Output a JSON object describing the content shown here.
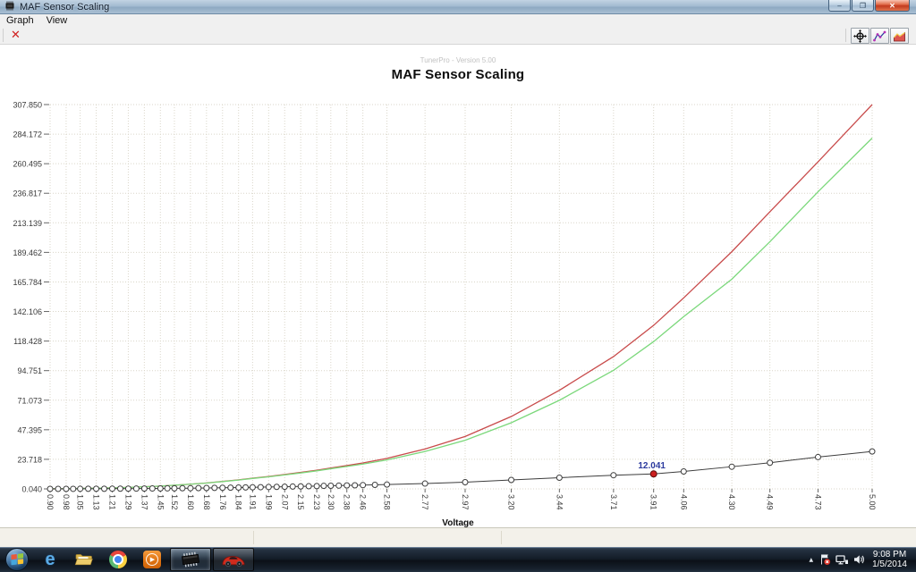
{
  "window": {
    "title": "MAF Sensor Scaling",
    "minimize_glyph": "–",
    "restore_glyph": "❐",
    "close_glyph": "✕"
  },
  "menu": {
    "items": [
      "Graph",
      "View"
    ]
  },
  "toolbar": {
    "delete_glyph": "✕"
  },
  "chart": {
    "subtitle": "TunerPro - Version 5.00",
    "title": "MAF Sensor Scaling",
    "xlabel": "Voltage"
  },
  "chart_data": {
    "type": "line",
    "title": "MAF Sensor Scaling",
    "xlabel": "Voltage",
    "grid": true,
    "grid_color": "#dad6c9",
    "legend": "none",
    "xlim": [
      0.9,
      5.0
    ],
    "ylim": [
      0.04,
      307.85
    ],
    "x": [
      0.9,
      0.98,
      1.05,
      1.13,
      1.21,
      1.29,
      1.37,
      1.45,
      1.52,
      1.6,
      1.68,
      1.76,
      1.84,
      1.91,
      1.99,
      2.07,
      2.15,
      2.23,
      2.3,
      2.38,
      2.46,
      2.58,
      2.77,
      2.97,
      3.2,
      3.44,
      3.71,
      3.91,
      4.06,
      4.3,
      4.49,
      4.73,
      5.0
    ],
    "x_labels": [
      "0.90",
      "0.98",
      "1.05",
      "1.13",
      "1.21",
      "1.29",
      "1.37",
      "1.45",
      "1.52",
      "1.60",
      "1.68",
      "1.76",
      "1.84",
      "1.91",
      "1.99",
      "2.07",
      "2.15",
      "2.23",
      "2.30",
      "2.38",
      "2.46",
      "2.58",
      "2.77",
      "2.97",
      "3.20",
      "3.44",
      "3.71",
      "3.91",
      "4.06",
      "4.30",
      "4.49",
      "4.73",
      "5.00"
    ],
    "y_ticks": [
      "0.040",
      "23.718",
      "47.395",
      "71.073",
      "94.751",
      "118.428",
      "142.106",
      "165.784",
      "189.462",
      "213.139",
      "236.817",
      "260.495",
      "284.172",
      "307.850"
    ],
    "dense_until": 21,
    "series": [
      {
        "name": "scaling-curve-red",
        "color": "#c84b4b",
        "markers": false,
        "values": [
          0.1,
          0.2,
          0.35,
          0.55,
          0.8,
          1.2,
          1.7,
          2.3,
          3.0,
          3.8,
          4.8,
          6.0,
          7.3,
          8.6,
          10.0,
          11.6,
          13.3,
          15.0,
          16.8,
          18.7,
          20.8,
          24.5,
          32.0,
          42.0,
          58.0,
          79.0,
          106.0,
          131.0,
          153.0,
          190.0,
          222.0,
          262.0,
          307.85
        ]
      },
      {
        "name": "scaling-curve-green",
        "color": "#7bd87b",
        "markers": false,
        "values": [
          0.1,
          0.2,
          0.35,
          0.55,
          0.8,
          1.2,
          1.7,
          2.3,
          3.0,
          3.8,
          4.7,
          5.9,
          7.1,
          8.4,
          9.7,
          11.2,
          12.8,
          14.5,
          16.2,
          18.0,
          19.9,
          23.2,
          30.0,
          39.0,
          53.0,
          71.0,
          95.0,
          118.0,
          138.0,
          168.0,
          198.0,
          238.0,
          281.0
        ]
      },
      {
        "name": "maf-transfer",
        "color": "#3c3c3c",
        "markers": true,
        "values": [
          0.04,
          0.06,
          0.09,
          0.13,
          0.18,
          0.24,
          0.31,
          0.4,
          0.5,
          0.62,
          0.76,
          0.92,
          1.1,
          1.3,
          1.52,
          1.76,
          2.02,
          2.3,
          2.55,
          2.8,
          3.05,
          3.5,
          4.3,
          5.4,
          7.2,
          9.0,
          11.0,
          12.041,
          14.0,
          17.8,
          21.0,
          25.5,
          30.0
        ]
      }
    ],
    "selected_point": {
      "x": 3.91,
      "y": 12.041,
      "label": "12.041",
      "color": "#cc1f1f",
      "edge_color": "#5e0f0f",
      "label_color": "#2b3a9e"
    }
  },
  "icons": {
    "play": "▶",
    "tray_expand": "▲"
  },
  "taskbar": {
    "time": "9:08 PM",
    "date": "1/5/2014"
  }
}
